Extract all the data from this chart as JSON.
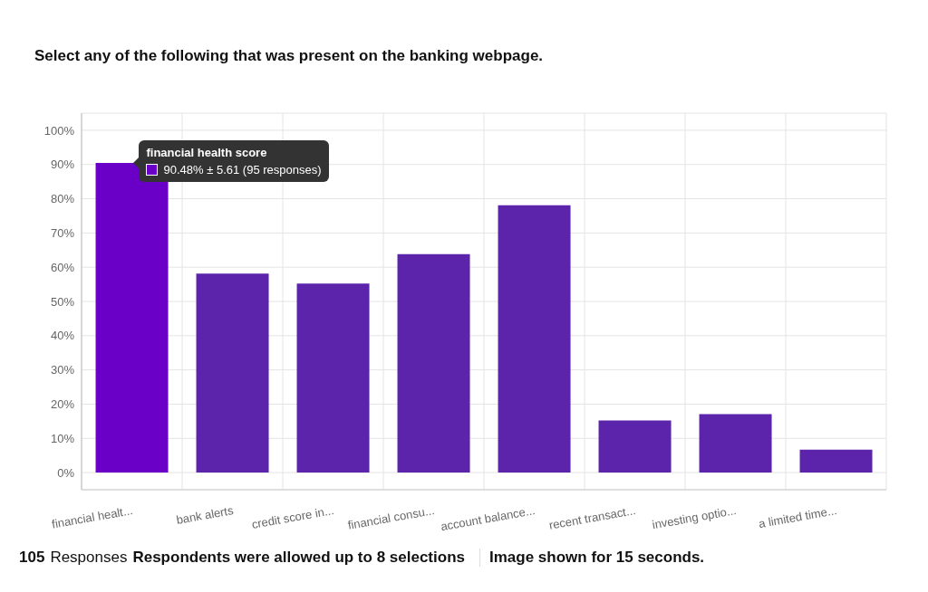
{
  "chart_data": {
    "type": "bar",
    "title": "Select any of the following that was present on the banking webpage.",
    "categories": [
      "financial healt...",
      "bank alerts",
      "credit score in...",
      "financial consu...",
      "account balance...",
      "recent transact...",
      "investing optio...",
      "a limited time..."
    ],
    "values": [
      90.48,
      58.1,
      55.2,
      63.8,
      78.1,
      15.2,
      17.1,
      6.7
    ],
    "colors": [
      "#6a00c8",
      "#5b24ab",
      "#5b24ab",
      "#5b24ab",
      "#5b24ab",
      "#5b24ab",
      "#5b24ab",
      "#5b24ab"
    ],
    "ylim": [
      -5,
      105
    ],
    "yticks": [
      {
        "value": 0,
        "label": "0%"
      },
      {
        "value": 10,
        "label": "10%"
      },
      {
        "value": 20,
        "label": "20%"
      },
      {
        "value": 30,
        "label": "30%"
      },
      {
        "value": 40,
        "label": "40%"
      },
      {
        "value": 50,
        "label": "50%"
      },
      {
        "value": 60,
        "label": "60%"
      },
      {
        "value": 70,
        "label": "70%"
      },
      {
        "value": 80,
        "label": "80%"
      },
      {
        "value": 90,
        "label": "90%"
      },
      {
        "value": 100,
        "label": "100%"
      }
    ],
    "grid": true,
    "annotations": [
      "financial health score",
      "90.48% ± 5.61 (95 responses)",
      "105",
      "Responses",
      "Respondents were allowed up to 8 selections",
      "Image shown for 15 seconds."
    ]
  }
}
